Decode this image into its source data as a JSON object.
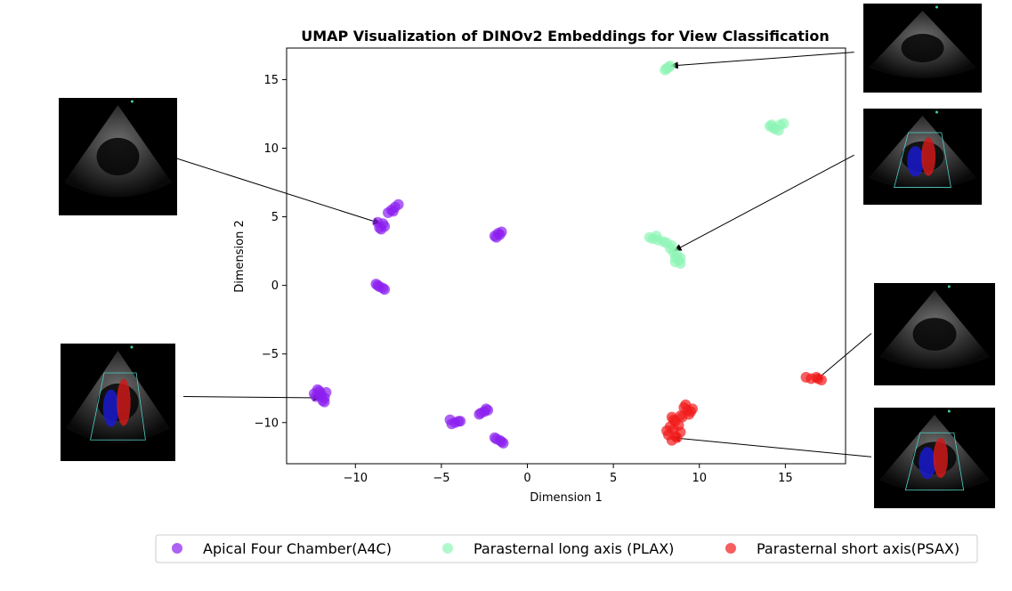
{
  "chart_data": {
    "type": "scatter",
    "title": "UMAP Visualization of DINOv2 Embeddings for View Classification",
    "xlabel": "Dimension 1",
    "ylabel": "Dimension 2",
    "xlim": [
      -14,
      18.5
    ],
    "ylim": [
      -13,
      17.3
    ],
    "xticks": [
      -10,
      -5,
      0,
      5,
      10,
      15
    ],
    "yticks": [
      -10,
      -5,
      0,
      5,
      10,
      15
    ],
    "xtick_labels": [
      "−10",
      "−5",
      "0",
      "5",
      "10",
      "15"
    ],
    "ytick_labels": [
      "−10",
      "−5",
      "0",
      "5",
      "10",
      "15"
    ],
    "grid": false,
    "legend_position": "bottom",
    "series": [
      {
        "name": "Apical Four Chamber(A4C)",
        "color": "#8b20f0",
        "points": [
          [
            -8.6,
            4.2
          ],
          [
            -8.4,
            4.5
          ],
          [
            -8.7,
            4.6
          ],
          [
            -8.3,
            4.3
          ],
          [
            -8.5,
            4.1
          ],
          [
            -8.1,
            5.3
          ],
          [
            -7.9,
            5.5
          ],
          [
            -7.7,
            5.7
          ],
          [
            -7.5,
            5.9
          ],
          [
            -7.8,
            5.4
          ],
          [
            -1.8,
            3.5
          ],
          [
            -1.6,
            3.7
          ],
          [
            -1.5,
            3.9
          ],
          [
            -1.9,
            3.6
          ],
          [
            -1.7,
            3.8
          ],
          [
            -8.8,
            0.1
          ],
          [
            -8.6,
            -0.1
          ],
          [
            -8.4,
            -0.2
          ],
          [
            -8.3,
            -0.3
          ],
          [
            -8.7,
            0.0
          ],
          [
            -12.2,
            -7.6
          ],
          [
            -12.0,
            -7.9
          ],
          [
            -11.8,
            -8.2
          ],
          [
            -12.3,
            -8.1
          ],
          [
            -11.9,
            -8.4
          ],
          [
            -12.1,
            -7.7
          ],
          [
            -11.7,
            -7.8
          ],
          [
            -12.4,
            -7.9
          ],
          [
            -11.8,
            -8.5
          ],
          [
            -12.0,
            -8.1
          ],
          [
            -4.5,
            -9.8
          ],
          [
            -4.2,
            -10.0
          ],
          [
            -4.0,
            -9.9
          ],
          [
            -4.4,
            -10.1
          ],
          [
            -3.9,
            -9.9
          ],
          [
            -2.8,
            -9.4
          ],
          [
            -2.5,
            -9.2
          ],
          [
            -2.4,
            -9.0
          ],
          [
            -2.7,
            -9.3
          ],
          [
            -2.3,
            -9.1
          ],
          [
            -1.9,
            -11.1
          ],
          [
            -1.6,
            -11.3
          ],
          [
            -1.4,
            -11.5
          ],
          [
            -1.8,
            -11.2
          ],
          [
            -1.5,
            -11.4
          ]
        ]
      },
      {
        "name": "Parasternal long axis (PLAX)",
        "color": "#8ef5b6",
        "points": [
          [
            8.1,
            15.8
          ],
          [
            8.3,
            16.0
          ],
          [
            8.2,
            15.9
          ],
          [
            8.0,
            15.7
          ],
          [
            14.1,
            11.6
          ],
          [
            14.4,
            11.4
          ],
          [
            14.7,
            11.7
          ],
          [
            14.9,
            11.8
          ],
          [
            14.3,
            11.5
          ],
          [
            14.6,
            11.3
          ],
          [
            14.2,
            11.7
          ],
          [
            7.1,
            3.5
          ],
          [
            7.3,
            3.4
          ],
          [
            7.6,
            3.3
          ],
          [
            7.9,
            3.2
          ],
          [
            8.1,
            3.1
          ],
          [
            8.3,
            2.7
          ],
          [
            8.5,
            2.4
          ],
          [
            8.6,
            2.0
          ],
          [
            8.8,
            1.8
          ],
          [
            8.7,
            2.2
          ],
          [
            8.9,
            1.6
          ],
          [
            8.4,
            2.9
          ],
          [
            7.5,
            3.6
          ],
          [
            8.9,
            2.0
          ],
          [
            8.6,
            1.7
          ]
        ]
      },
      {
        "name": "Parasternal short axis(PSAX)",
        "color": "#f21b1b",
        "points": [
          [
            16.2,
            -6.7
          ],
          [
            16.5,
            -6.8
          ],
          [
            16.8,
            -6.7
          ],
          [
            17.1,
            -6.9
          ],
          [
            16.9,
            -6.8
          ],
          [
            8.4,
            -9.6
          ],
          [
            8.6,
            -9.9
          ],
          [
            8.3,
            -10.3
          ],
          [
            8.5,
            -10.5
          ],
          [
            8.2,
            -10.9
          ],
          [
            8.7,
            -11.1
          ],
          [
            8.4,
            -11.3
          ],
          [
            8.8,
            -10.2
          ],
          [
            8.1,
            -10.6
          ],
          [
            8.9,
            -9.5
          ],
          [
            9.1,
            -8.9
          ],
          [
            9.3,
            -9.1
          ],
          [
            9.5,
            -9.2
          ],
          [
            9.2,
            -8.7
          ],
          [
            9.4,
            -9.4
          ],
          [
            9.0,
            -9.6
          ],
          [
            8.9,
            -10.7
          ],
          [
            8.6,
            -11.0
          ],
          [
            9.6,
            -9.0
          ],
          [
            8.5,
            -9.8
          ]
        ]
      }
    ],
    "annotations": [
      {
        "from": [
          -21.0,
          9.5
        ],
        "to": [
          -8.5,
          4.5
        ]
      },
      {
        "from": [
          -20.0,
          -8.1
        ],
        "to": [
          -12.0,
          -8.2
        ]
      },
      {
        "from": [
          19.0,
          17.0
        ],
        "to": [
          8.3,
          16.0
        ]
      },
      {
        "from": [
          19.0,
          9.5
        ],
        "to": [
          8.5,
          2.5
        ]
      },
      {
        "from": [
          20.0,
          -3.5
        ],
        "to": [
          16.7,
          -7.0
        ]
      },
      {
        "from": [
          20.0,
          -12.5
        ],
        "to": [
          8.4,
          -11.1
        ]
      }
    ],
    "insets": [
      {
        "name": "a4c-inset",
        "doppler": false
      },
      {
        "name": "a4c-doppler-inset",
        "doppler": true
      },
      {
        "name": "plax-inset",
        "doppler": false
      },
      {
        "name": "plax-doppler-inset",
        "doppler": true
      },
      {
        "name": "psax-inset",
        "doppler": false
      },
      {
        "name": "psax-doppler-inset",
        "doppler": true
      }
    ]
  }
}
